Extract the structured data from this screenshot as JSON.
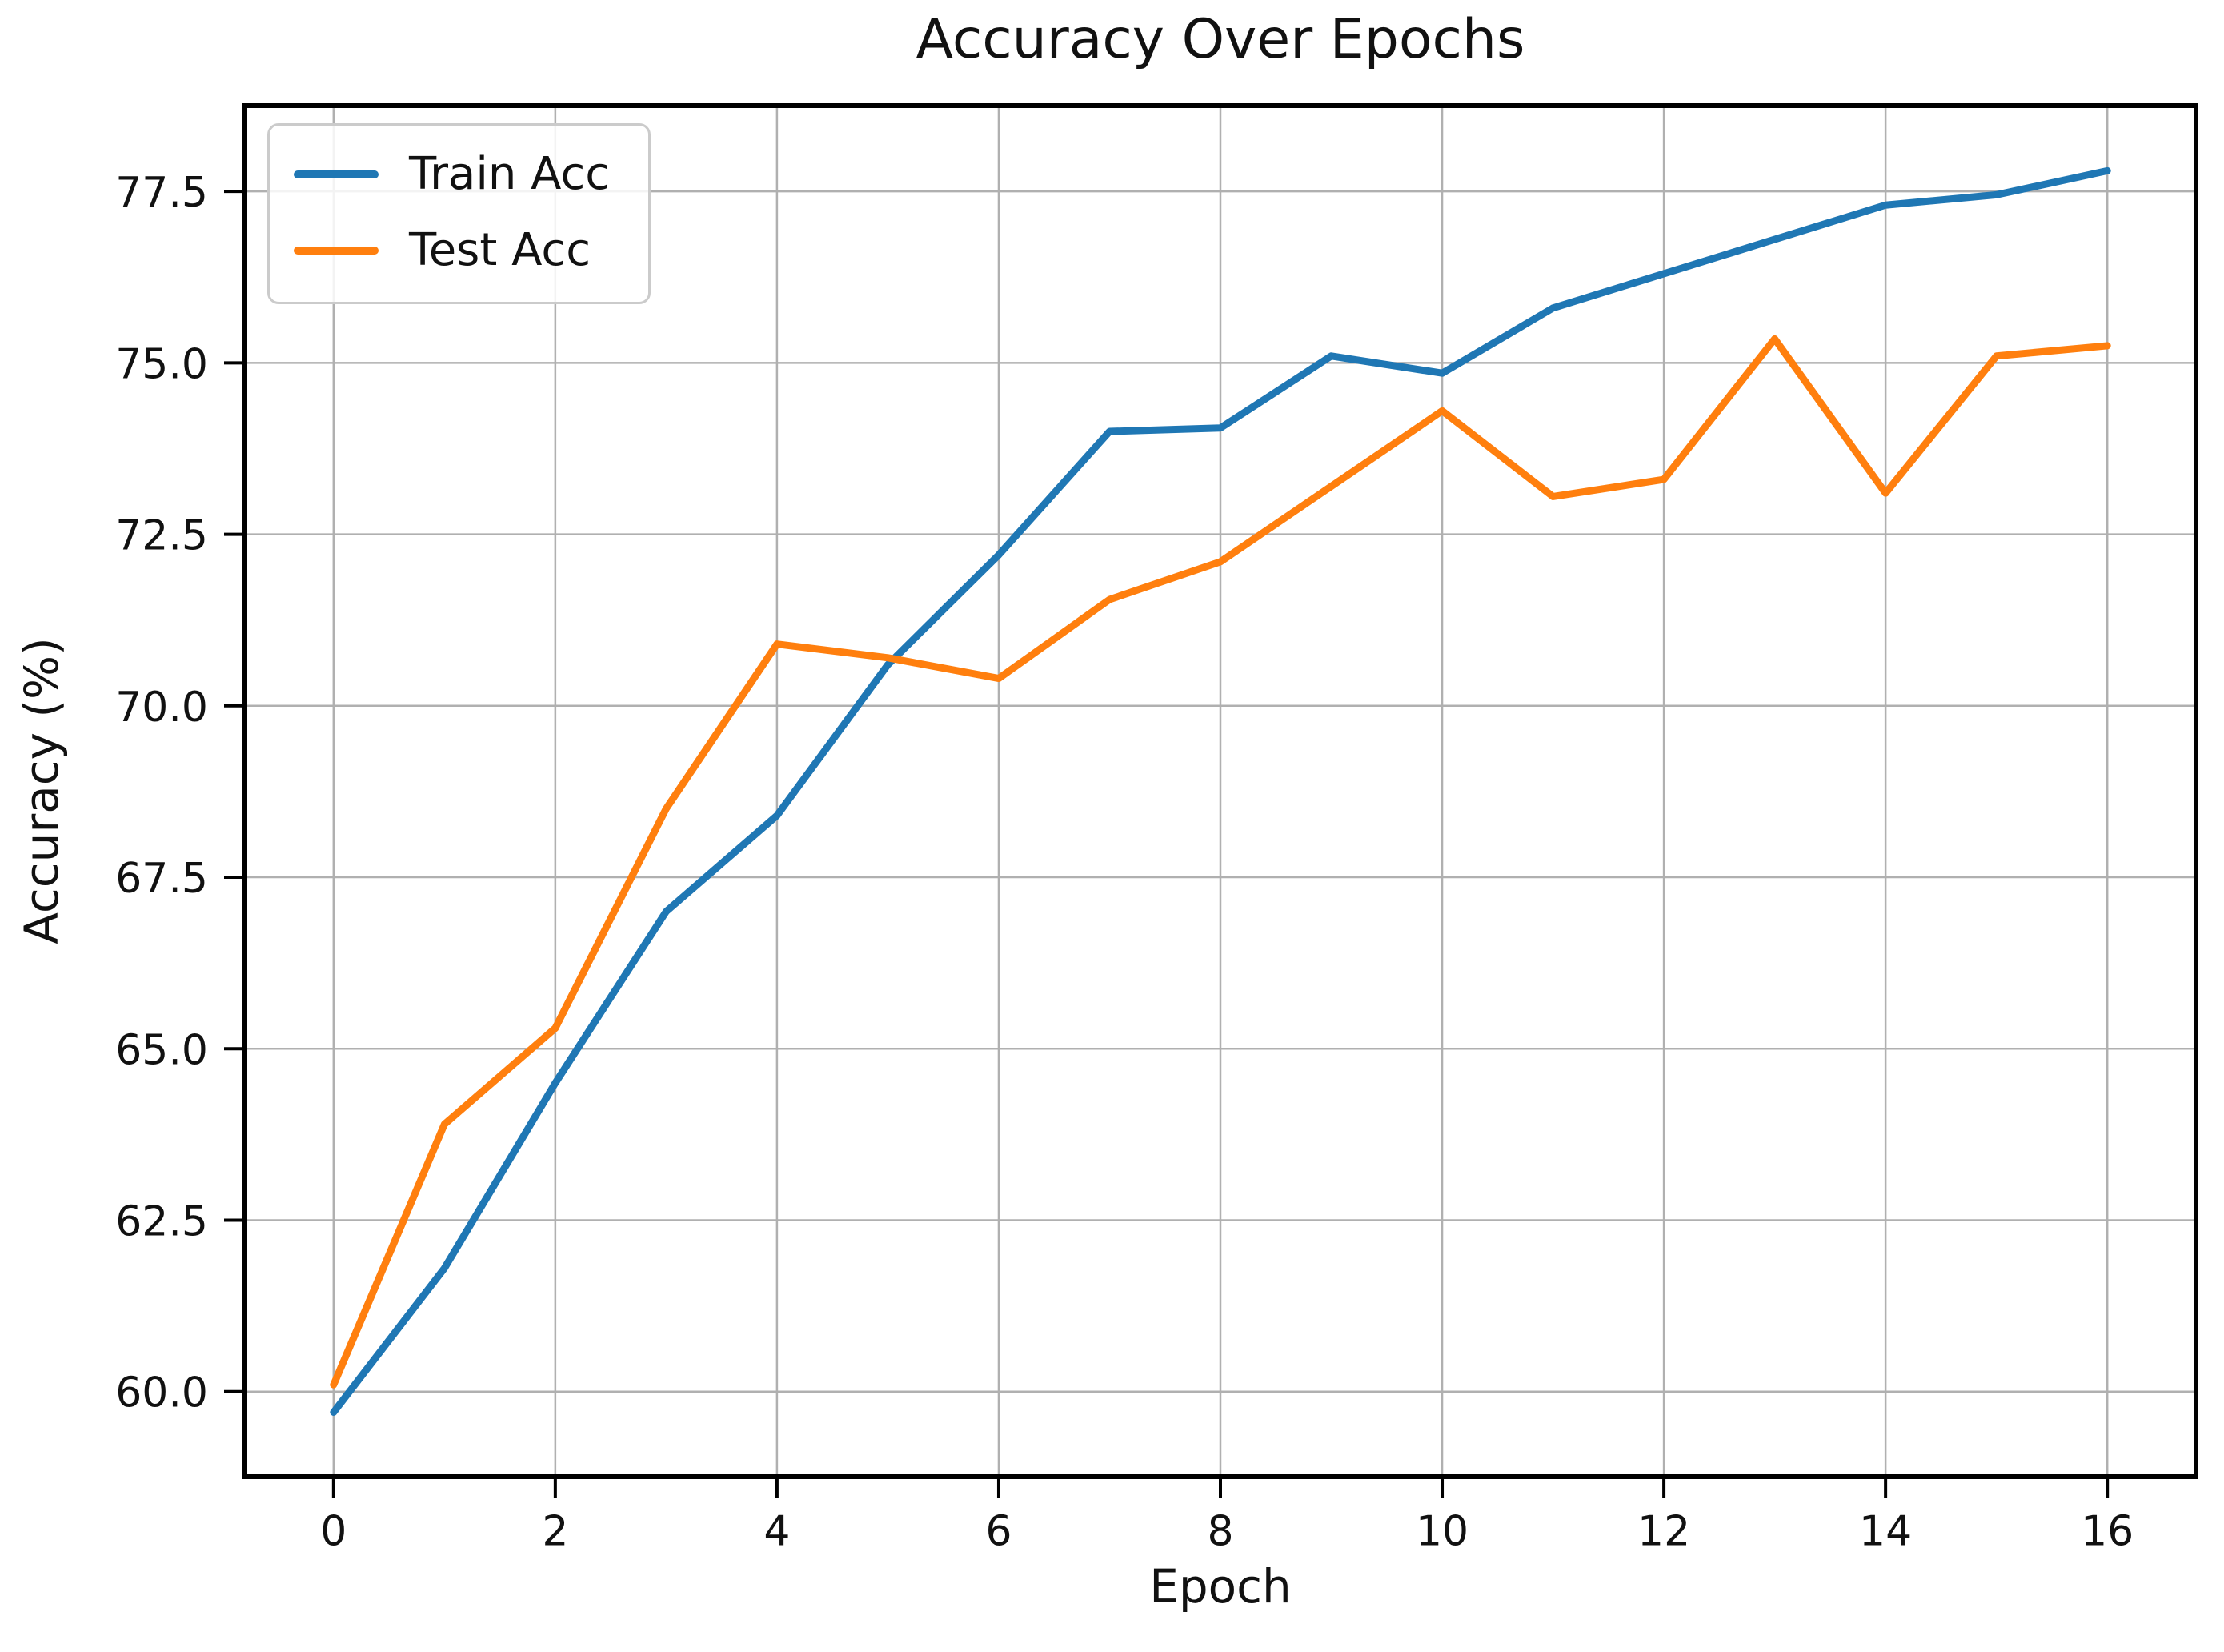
{
  "chart_data": {
    "type": "line",
    "title": "Accuracy Over Epochs",
    "xlabel": "Epoch",
    "ylabel": "Accuracy (%)",
    "x": [
      0,
      1,
      2,
      3,
      4,
      5,
      6,
      7,
      8,
      9,
      10,
      11,
      12,
      13,
      14,
      15,
      16
    ],
    "series": [
      {
        "name": "Train Acc",
        "color": "#1f77b4",
        "values": [
          59.7,
          61.8,
          64.5,
          67.0,
          68.4,
          70.6,
          72.2,
          74.0,
          74.05,
          75.1,
          74.85,
          75.8,
          76.3,
          76.8,
          77.3,
          77.45,
          77.8
        ]
      },
      {
        "name": "Test Acc",
        "color": "#ff7f0e",
        "values": [
          60.1,
          63.9,
          65.3,
          68.5,
          70.9,
          70.7,
          70.4,
          71.55,
          72.1,
          73.2,
          74.3,
          73.05,
          73.3,
          75.35,
          73.1,
          75.1,
          75.25
        ]
      }
    ],
    "xlim": [
      -0.8,
      16.8
    ],
    "ylim": [
      58.76,
      78.75
    ],
    "xticks": {
      "values": [
        0,
        2,
        4,
        6,
        8,
        10,
        12,
        14,
        16
      ],
      "labels": [
        "0",
        "2",
        "4",
        "6",
        "8",
        "10",
        "12",
        "14",
        "16"
      ]
    },
    "yticks": {
      "values": [
        60.0,
        62.5,
        65.0,
        67.5,
        70.0,
        72.5,
        75.0,
        77.5
      ],
      "labels": [
        "60.0",
        "62.5",
        "65.0",
        "67.5",
        "70.0",
        "72.5",
        "75.0",
        "77.5"
      ]
    },
    "grid": true,
    "legend_position": "upper left",
    "colors": {
      "grid": "#b0b0b0",
      "spine": "#000000",
      "text": "#111111"
    }
  }
}
